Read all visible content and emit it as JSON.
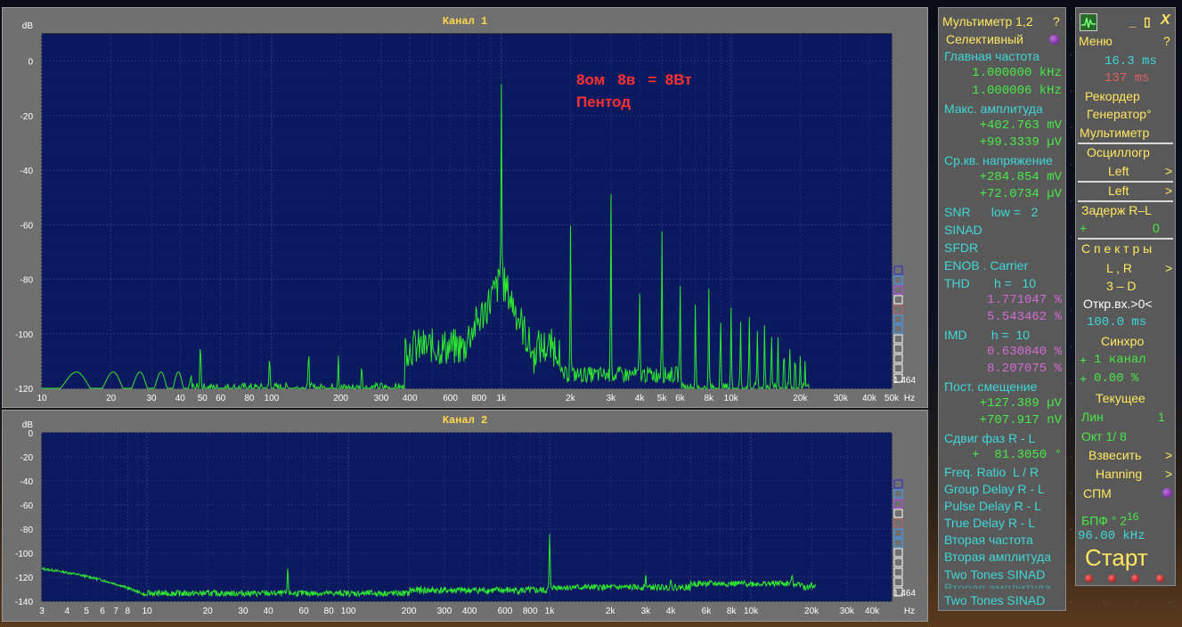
{
  "channel1": {
    "title": "Канал 1",
    "unit": "dB",
    "y_ticks": [
      "0",
      "-20",
      "-40",
      "-60",
      "-80",
      "-100",
      "-120"
    ],
    "x_ticks": [
      "10",
      "20",
      "30",
      "40",
      "50",
      "60",
      "80",
      "100",
      "200",
      "300",
      "400",
      "600",
      "800",
      "1k",
      "2k",
      "3k",
      "4k",
      "5k",
      "6k",
      "8k",
      "10k",
      "20k",
      "30k",
      "40k",
      "50k",
      "Hz"
    ],
    "annotation_line1": "8ом   8в   =  8Вт",
    "annotation_line2": "Пентод",
    "scale_value": "1.464",
    "colors": {
      "plot_bg": "#0b1a5e",
      "trace": "#2ee82e",
      "annotation": "#ff3030"
    }
  },
  "channel2": {
    "title": "Канал 2",
    "unit": "dB",
    "y_ticks": [
      "0",
      "-20",
      "-40",
      "-60",
      "-80",
      "-100",
      "-120",
      "-140"
    ],
    "x_ticks": [
      "3",
      "4",
      "5",
      "6",
      "7",
      "8",
      "10",
      "20",
      "30",
      "40",
      "60",
      "80",
      "100",
      "200",
      "300",
      "400",
      "600",
      "800",
      "1k",
      "2k",
      "3k",
      "4k",
      "6k",
      "8k",
      "10k",
      "20k",
      "30k",
      "40k",
      "Hz"
    ],
    "scale_value": "1.464"
  },
  "multimeter": {
    "header": "Мультиметр 1,2",
    "help": "?",
    "mode": "Селективный",
    "main_freq_label": "Главная частота",
    "main_freq_1": "1.000000 kHz",
    "main_freq_2": "1.000006 kHz",
    "max_amp_label": "Макс. амплитуда",
    "max_amp_1": "+402.763 mV",
    "max_amp_2": "+99.3339 µV",
    "rms_label": "Ср.кв. напряжение",
    "rms_1": "+284.854 mV",
    "rms_2": "+72.0734 µV",
    "snr": "SNR      low =   2",
    "sinad": "SINAD",
    "sfdr": "SFDR",
    "enob": "ENOB . Carrier",
    "thd": "THD       h =   10",
    "thd_1": "1.771047 %",
    "thd_2": "5.543462 %",
    "imd": "IMD       h =  10",
    "imd_1": "0.630840 %",
    "imd_2": "8.207075 %",
    "dc_label": "Пост. смещение",
    "dc_1": "+127.389 µV",
    "dc_2": "+707.917 nV",
    "phase_label": "Сдвиг фаз R - L",
    "phase_value": "+  81.3050 °",
    "freq_ratio": "Freq. Ratio  L / R",
    "group_delay": "Group Delay R - L",
    "pulse_delay": "Pulse Delay R - L",
    "true_delay": "True Delay R - L",
    "second_freq": "Вторая частота",
    "second_amp": "Вторая амплитуда",
    "two_tones": "Two Tones SINAD",
    "second_amp_dup": "Вторая амплитуда",
    "two_tones_dup": "Two Tones SINAD"
  },
  "controls": {
    "minimize": "_",
    "restore": "▯",
    "close": "X",
    "menu": "Меню",
    "help": "?",
    "time1": "16.3 ms",
    "time2": "137  ms",
    "recorder": "Рекордер",
    "generator": "Генератор°",
    "multimeter": "Мультиметр",
    "oscilloscope": "Осциллогр",
    "left1": "Left",
    "left2": "Left",
    "arrow": ">",
    "delay": "Задерж  R–L",
    "delay_val_sign": "+",
    "delay_val": "0",
    "spectra": "С п е к т р ы",
    "lr": "L , R",
    "threed": "3 – D",
    "open_input": "Откр.вх.>0<",
    "open_time": "100.0 ms",
    "sync": "Синхро",
    "sync_ch_sign": "+",
    "sync_ch": "1 канал",
    "sync_pct_sign": "+",
    "sync_pct": "0.00 %",
    "current": "Текущее",
    "lin": "Лин",
    "lin_val": "1",
    "oct": "Окт  1/  8",
    "weigh": "Взвесить",
    "window": "Hanning",
    "spm": "СПМ",
    "fft": "БПФ ° 2",
    "fft_exp": "16",
    "rate": "96.00 kHz",
    "start": "Старт"
  }
}
